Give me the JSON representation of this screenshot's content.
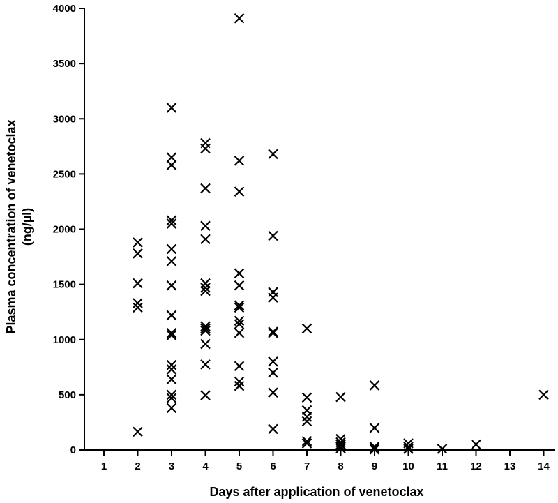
{
  "chart_data": {
    "type": "scatter",
    "title": "",
    "xlabel": "Days after application of venetoclax",
    "ylabel_line1": "Plasma concentration of venetoclax",
    "ylabel_line2": "(ng/µl)",
    "x_categories": [
      "1",
      "2",
      "3",
      "4",
      "5",
      "6",
      "7",
      "8",
      "9",
      "10",
      "11",
      "12",
      "13",
      "14"
    ],
    "y_ticks": [
      "0",
      "500",
      "1000",
      "1500",
      "2000",
      "2500",
      "3000",
      "3500",
      "4000"
    ],
    "ylim": [
      0,
      4000
    ],
    "grid": false,
    "marker": "x",
    "marker_color": "#000000",
    "points": [
      {
        "x": 2,
        "y": 1880
      },
      {
        "x": 2,
        "y": 1780
      },
      {
        "x": 2,
        "y": 1510
      },
      {
        "x": 2,
        "y": 1330
      },
      {
        "x": 2,
        "y": 1290
      },
      {
        "x": 2,
        "y": 165
      },
      {
        "x": 3,
        "y": 3100
      },
      {
        "x": 3,
        "y": 2650
      },
      {
        "x": 3,
        "y": 2580
      },
      {
        "x": 3,
        "y": 2080
      },
      {
        "x": 3,
        "y": 2050
      },
      {
        "x": 3,
        "y": 1820
      },
      {
        "x": 3,
        "y": 1710
      },
      {
        "x": 3,
        "y": 1490
      },
      {
        "x": 3,
        "y": 1220
      },
      {
        "x": 3,
        "y": 1060
      },
      {
        "x": 3,
        "y": 1040
      },
      {
        "x": 3,
        "y": 770
      },
      {
        "x": 3,
        "y": 730
      },
      {
        "x": 3,
        "y": 640
      },
      {
        "x": 3,
        "y": 500
      },
      {
        "x": 3,
        "y": 470
      },
      {
        "x": 3,
        "y": 380
      },
      {
        "x": 4,
        "y": 2780
      },
      {
        "x": 4,
        "y": 2730
      },
      {
        "x": 4,
        "y": 2370
      },
      {
        "x": 4,
        "y": 2030
      },
      {
        "x": 4,
        "y": 1910
      },
      {
        "x": 4,
        "y": 1510
      },
      {
        "x": 4,
        "y": 1470
      },
      {
        "x": 4,
        "y": 1440
      },
      {
        "x": 4,
        "y": 1120
      },
      {
        "x": 4,
        "y": 1100
      },
      {
        "x": 4,
        "y": 1080
      },
      {
        "x": 4,
        "y": 960
      },
      {
        "x": 4,
        "y": 775
      },
      {
        "x": 4,
        "y": 495
      },
      {
        "x": 5,
        "y": 3910
      },
      {
        "x": 5,
        "y": 2620
      },
      {
        "x": 5,
        "y": 2340
      },
      {
        "x": 5,
        "y": 1600
      },
      {
        "x": 5,
        "y": 1490
      },
      {
        "x": 5,
        "y": 1310
      },
      {
        "x": 5,
        "y": 1290
      },
      {
        "x": 5,
        "y": 1170
      },
      {
        "x": 5,
        "y": 1140
      },
      {
        "x": 5,
        "y": 1060
      },
      {
        "x": 5,
        "y": 760
      },
      {
        "x": 5,
        "y": 620
      },
      {
        "x": 5,
        "y": 580
      },
      {
        "x": 6,
        "y": 2680
      },
      {
        "x": 6,
        "y": 1940
      },
      {
        "x": 6,
        "y": 1430
      },
      {
        "x": 6,
        "y": 1380
      },
      {
        "x": 6,
        "y": 1070
      },
      {
        "x": 6,
        "y": 1060
      },
      {
        "x": 6,
        "y": 800
      },
      {
        "x": 6,
        "y": 700
      },
      {
        "x": 6,
        "y": 520
      },
      {
        "x": 6,
        "y": 190
      },
      {
        "x": 7,
        "y": 1100
      },
      {
        "x": 7,
        "y": 475
      },
      {
        "x": 7,
        "y": 360
      },
      {
        "x": 7,
        "y": 300
      },
      {
        "x": 7,
        "y": 260
      },
      {
        "x": 7,
        "y": 80
      },
      {
        "x": 7,
        "y": 60
      },
      {
        "x": 8,
        "y": 480
      },
      {
        "x": 8,
        "y": 100
      },
      {
        "x": 8,
        "y": 70
      },
      {
        "x": 8,
        "y": 50
      },
      {
        "x": 8,
        "y": 30
      },
      {
        "x": 8,
        "y": 15
      },
      {
        "x": 9,
        "y": 585
      },
      {
        "x": 9,
        "y": 200
      },
      {
        "x": 9,
        "y": 30
      },
      {
        "x": 9,
        "y": 15
      },
      {
        "x": 9,
        "y": 5
      },
      {
        "x": 10,
        "y": 60
      },
      {
        "x": 10,
        "y": 30
      },
      {
        "x": 10,
        "y": 10
      },
      {
        "x": 11,
        "y": 10
      },
      {
        "x": 12,
        "y": 50
      },
      {
        "x": 14,
        "y": 500
      }
    ]
  }
}
